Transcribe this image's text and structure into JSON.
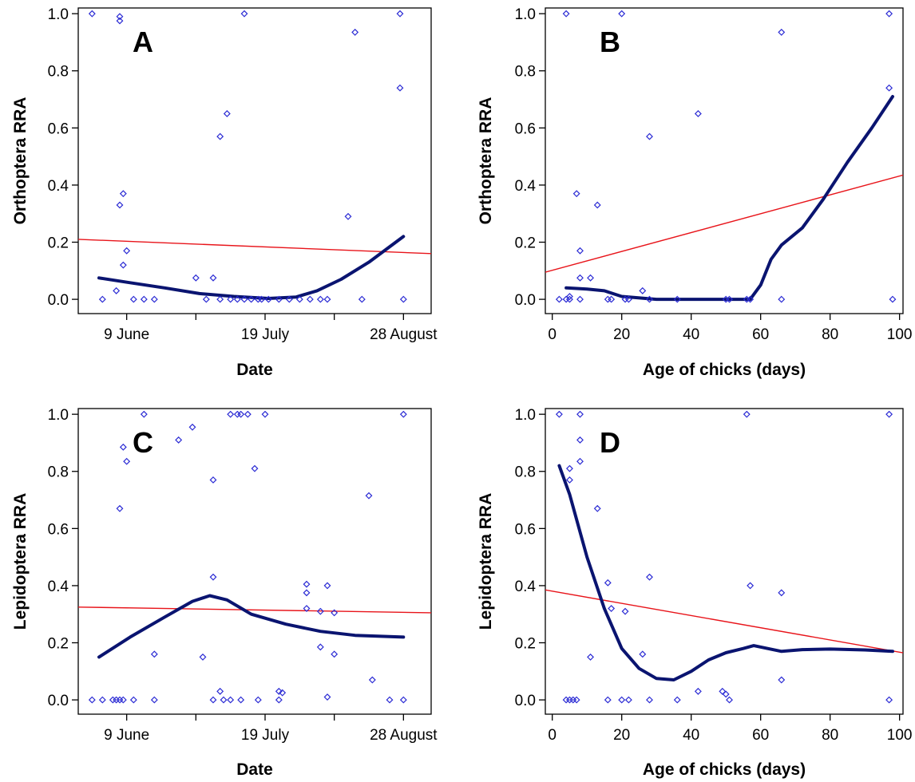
{
  "colors": {
    "points": "#2b2bd4",
    "smooth": "#0a1470",
    "fit": "#e8141a",
    "axis": "#000000"
  },
  "chart_data": [
    {
      "panel": "A",
      "type": "scatter",
      "xlabel": "Date",
      "ylabel": "Orthoptera RRA",
      "x_tick_labels": [
        "9 June",
        "19 July",
        "28 August"
      ],
      "x_tick_values": [
        "2014-06-09",
        "2014-07-19",
        "2014-08-28"
      ],
      "xlim": [
        "2014-05-26",
        "2014-09-05"
      ],
      "ylim": [
        -0.05,
        1.02
      ],
      "yticks": [
        0.0,
        0.2,
        0.4,
        0.6,
        0.8,
        1.0
      ],
      "points": [
        [
          "2014-05-30",
          1.0
        ],
        [
          "2014-06-02",
          0.0
        ],
        [
          "2014-06-06",
          0.03
        ],
        [
          "2014-06-07",
          0.33
        ],
        [
          "2014-06-07",
          0.99
        ],
        [
          "2014-06-07",
          0.975
        ],
        [
          "2014-06-08",
          0.37
        ],
        [
          "2014-06-08",
          0.12
        ],
        [
          "2014-06-09",
          0.17
        ],
        [
          "2014-06-11",
          0.0
        ],
        [
          "2014-06-14",
          0.0
        ],
        [
          "2014-06-17",
          0.0
        ],
        [
          "2014-06-29",
          0.075
        ],
        [
          "2014-07-02",
          0.0
        ],
        [
          "2014-07-04",
          0.075
        ],
        [
          "2014-07-06",
          0.57
        ],
        [
          "2014-07-08",
          0.65
        ],
        [
          "2014-07-06",
          0.0
        ],
        [
          "2014-07-09",
          0.0
        ],
        [
          "2014-07-11",
          0.0
        ],
        [
          "2014-07-13",
          1.0
        ],
        [
          "2014-07-13",
          0.0
        ],
        [
          "2014-07-15",
          0.0
        ],
        [
          "2014-07-17",
          0.0
        ],
        [
          "2014-07-18",
          0.0
        ],
        [
          "2014-07-20",
          0.0
        ],
        [
          "2014-07-23",
          0.0
        ],
        [
          "2014-07-26",
          0.0
        ],
        [
          "2014-07-29",
          0.0
        ],
        [
          "2014-08-01",
          0.0
        ],
        [
          "2014-08-04",
          0.0
        ],
        [
          "2014-08-06",
          0.0
        ],
        [
          "2014-08-12",
          0.29
        ],
        [
          "2014-08-14",
          0.935
        ],
        [
          "2014-08-16",
          0.0
        ],
        [
          "2014-08-27",
          1.0
        ],
        [
          "2014-08-27",
          0.74
        ],
        [
          "2014-08-28",
          0.0
        ]
      ],
      "smooth": [
        [
          "2014-06-01",
          0.075
        ],
        [
          "2014-06-10",
          0.058
        ],
        [
          "2014-06-20",
          0.04
        ],
        [
          "2014-06-30",
          0.02
        ],
        [
          "2014-07-10",
          0.01
        ],
        [
          "2014-07-20",
          0.003
        ],
        [
          "2014-07-28",
          0.008
        ],
        [
          "2014-08-03",
          0.03
        ],
        [
          "2014-08-10",
          0.07
        ],
        [
          "2014-08-18",
          0.13
        ],
        [
          "2014-08-28",
          0.22
        ]
      ],
      "fit": [
        [
          "2014-05-26",
          0.21
        ],
        [
          "2014-09-05",
          0.16
        ]
      ]
    },
    {
      "panel": "B",
      "type": "scatter",
      "xlabel": "Age of chicks (days)",
      "ylabel": "Orthoptera RRA",
      "xlim": [
        -2,
        101
      ],
      "ylim": [
        -0.05,
        1.02
      ],
      "xticks": [
        0,
        20,
        40,
        60,
        80,
        100
      ],
      "yticks": [
        0.0,
        0.2,
        0.4,
        0.6,
        0.8,
        1.0
      ],
      "points": [
        [
          2,
          0.0
        ],
        [
          4,
          0.0
        ],
        [
          4,
          1.0
        ],
        [
          5,
          0.0
        ],
        [
          5,
          0.01
        ],
        [
          7,
          0.37
        ],
        [
          8,
          0.0
        ],
        [
          8,
          0.17
        ],
        [
          8,
          0.075
        ],
        [
          11,
          0.075
        ],
        [
          13,
          0.33
        ],
        [
          16,
          0.0
        ],
        [
          17,
          0.0
        ],
        [
          20,
          1.0
        ],
        [
          21,
          0.0
        ],
        [
          22,
          0.0
        ],
        [
          26,
          0.03
        ],
        [
          28,
          0.57
        ],
        [
          28,
          0.0
        ],
        [
          36,
          0.0
        ],
        [
          42,
          0.65
        ],
        [
          50,
          0.0
        ],
        [
          51,
          0.0
        ],
        [
          56,
          0.0
        ],
        [
          57,
          0.0
        ],
        [
          66,
          0.935
        ],
        [
          66,
          0.0
        ],
        [
          97,
          1.0
        ],
        [
          97,
          0.74
        ],
        [
          98,
          0.0
        ]
      ],
      "smooth": [
        [
          4,
          0.04
        ],
        [
          10,
          0.036
        ],
        [
          15,
          0.03
        ],
        [
          20,
          0.01
        ],
        [
          30,
          0.0
        ],
        [
          40,
          0.0
        ],
        [
          50,
          0.0
        ],
        [
          57,
          0.0
        ],
        [
          60,
          0.05
        ],
        [
          63,
          0.14
        ],
        [
          66,
          0.19
        ],
        [
          72,
          0.25
        ],
        [
          78,
          0.35
        ],
        [
          85,
          0.48
        ],
        [
          92,
          0.6
        ],
        [
          98,
          0.71
        ]
      ],
      "fit": [
        [
          -2,
          0.095
        ],
        [
          101,
          0.435
        ]
      ]
    },
    {
      "panel": "C",
      "type": "scatter",
      "xlabel": "Date",
      "ylabel": "Lepidoptera RRA",
      "x_tick_labels": [
        "9 June",
        "19 July",
        "28 August"
      ],
      "x_tick_values": [
        "2014-06-09",
        "2014-07-19",
        "2014-08-28"
      ],
      "xlim": [
        "2014-05-26",
        "2014-09-05"
      ],
      "ylim": [
        -0.05,
        1.02
      ],
      "yticks": [
        0.0,
        0.2,
        0.4,
        0.6,
        0.8,
        1.0
      ],
      "points": [
        [
          "2014-05-30",
          0.0
        ],
        [
          "2014-06-02",
          0.0
        ],
        [
          "2014-06-05",
          0.0
        ],
        [
          "2014-06-06",
          0.0
        ],
        [
          "2014-06-07",
          0.67
        ],
        [
          "2014-06-07",
          0.0
        ],
        [
          "2014-06-08",
          0.885
        ],
        [
          "2014-06-08",
          0.0
        ],
        [
          "2014-06-09",
          0.835
        ],
        [
          "2014-06-11",
          0.0
        ],
        [
          "2014-06-14",
          1.0
        ],
        [
          "2014-06-17",
          0.16
        ],
        [
          "2014-06-17",
          0.0
        ],
        [
          "2014-06-24",
          0.91
        ],
        [
          "2014-06-28",
          0.955
        ],
        [
          "2014-07-01",
          0.15
        ],
        [
          "2014-07-04",
          0.77
        ],
        [
          "2014-07-04",
          0.43
        ],
        [
          "2014-07-06",
          0.03
        ],
        [
          "2014-07-04",
          0.0
        ],
        [
          "2014-07-07",
          0.0
        ],
        [
          "2014-07-09",
          0.0
        ],
        [
          "2014-07-09",
          1.0
        ],
        [
          "2014-07-11",
          1.0
        ],
        [
          "2014-07-12",
          0.0
        ],
        [
          "2014-07-12",
          1.0
        ],
        [
          "2014-07-14",
          1.0
        ],
        [
          "2014-07-16",
          0.81
        ],
        [
          "2014-07-17",
          0.0
        ],
        [
          "2014-07-19",
          1.0
        ],
        [
          "2014-07-23",
          0.03
        ],
        [
          "2014-07-23",
          0.0
        ],
        [
          "2014-07-24",
          0.025
        ],
        [
          "2014-07-31",
          0.405
        ],
        [
          "2014-07-31",
          0.375
        ],
        [
          "2014-07-31",
          0.32
        ],
        [
          "2014-08-04",
          0.31
        ],
        [
          "2014-08-04",
          0.185
        ],
        [
          "2014-08-06",
          0.4
        ],
        [
          "2014-08-06",
          0.01
        ],
        [
          "2014-08-08",
          0.305
        ],
        [
          "2014-08-08",
          0.16
        ],
        [
          "2014-08-18",
          0.715
        ],
        [
          "2014-08-19",
          0.07
        ],
        [
          "2014-08-24",
          0.0
        ],
        [
          "2014-08-28",
          1.0
        ],
        [
          "2014-08-28",
          0.0
        ]
      ],
      "smooth": [
        [
          "2014-06-01",
          0.15
        ],
        [
          "2014-06-10",
          0.22
        ],
        [
          "2014-06-20",
          0.29
        ],
        [
          "2014-06-28",
          0.345
        ],
        [
          "2014-07-03",
          0.365
        ],
        [
          "2014-07-08",
          0.35
        ],
        [
          "2014-07-15",
          0.3
        ],
        [
          "2014-07-25",
          0.265
        ],
        [
          "2014-08-04",
          0.24
        ],
        [
          "2014-08-14",
          0.226
        ],
        [
          "2014-08-28",
          0.22
        ]
      ],
      "fit": [
        [
          "2014-05-26",
          0.325
        ],
        [
          "2014-09-05",
          0.305
        ]
      ]
    },
    {
      "panel": "D",
      "type": "scatter",
      "xlabel": "Age of chicks (days)",
      "ylabel": "Lepidoptera RRA",
      "xlim": [
        -2,
        101
      ],
      "ylim": [
        -0.05,
        1.02
      ],
      "xticks": [
        0,
        20,
        40,
        60,
        80,
        100
      ],
      "yticks": [
        0.0,
        0.2,
        0.4,
        0.6,
        0.8,
        1.0
      ],
      "points": [
        [
          2,
          1.0
        ],
        [
          4,
          0.0
        ],
        [
          5,
          0.81
        ],
        [
          5,
          0.77
        ],
        [
          5,
          0.0
        ],
        [
          6,
          0.0
        ],
        [
          7,
          0.0
        ],
        [
          8,
          1.0
        ],
        [
          8,
          0.91
        ],
        [
          8,
          0.835
        ],
        [
          11,
          0.15
        ],
        [
          13,
          0.67
        ],
        [
          16,
          0.41
        ],
        [
          16,
          0.0
        ],
        [
          17,
          0.32
        ],
        [
          20,
          0.0
        ],
        [
          21,
          0.31
        ],
        [
          22,
          0.0
        ],
        [
          26,
          0.16
        ],
        [
          28,
          0.43
        ],
        [
          28,
          0.0
        ],
        [
          36,
          0.0
        ],
        [
          42,
          0.03
        ],
        [
          49,
          0.03
        ],
        [
          50,
          0.02
        ],
        [
          51,
          0.0
        ],
        [
          56,
          1.0
        ],
        [
          57,
          0.4
        ],
        [
          66,
          0.375
        ],
        [
          66,
          0.07
        ],
        [
          97,
          1.0
        ],
        [
          97,
          0.0
        ]
      ],
      "smooth": [
        [
          2,
          0.82
        ],
        [
          5,
          0.72
        ],
        [
          10,
          0.5
        ],
        [
          15,
          0.32
        ],
        [
          20,
          0.18
        ],
        [
          25,
          0.11
        ],
        [
          30,
          0.075
        ],
        [
          35,
          0.07
        ],
        [
          40,
          0.1
        ],
        [
          45,
          0.14
        ],
        [
          50,
          0.165
        ],
        [
          55,
          0.18
        ],
        [
          58,
          0.19
        ],
        [
          62,
          0.18
        ],
        [
          66,
          0.17
        ],
        [
          72,
          0.176
        ],
        [
          80,
          0.178
        ],
        [
          90,
          0.175
        ],
        [
          98,
          0.17
        ]
      ],
      "fit": [
        [
          -2,
          0.385
        ],
        [
          101,
          0.165
        ]
      ]
    }
  ]
}
